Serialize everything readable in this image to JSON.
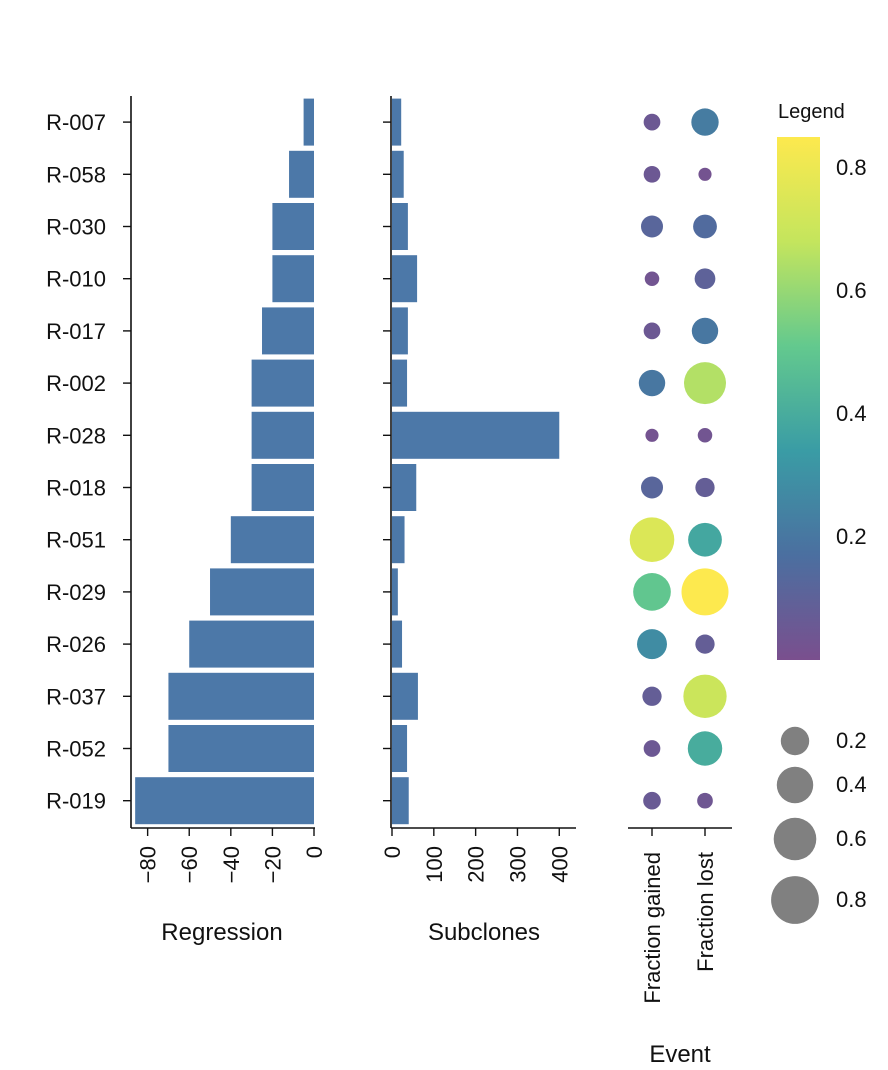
{
  "chart_data": {
    "type": "bar",
    "samples": [
      "R-007",
      "R-058",
      "R-030",
      "R-010",
      "R-017",
      "R-002",
      "R-028",
      "R-018",
      "R-051",
      "R-029",
      "R-026",
      "R-037",
      "R-052",
      "R-019"
    ],
    "bar_color": "#4c78a8",
    "panels": {
      "regression": {
        "title": "Regression",
        "type": "bar",
        "orientation": "horizontal",
        "values": [
          -5,
          -12,
          -20,
          -20,
          -25,
          -30,
          -30,
          -30,
          -40,
          -50,
          -60,
          -70,
          -70,
          -86
        ],
        "xlim": [
          -88,
          0
        ],
        "ticks": [
          -80,
          -60,
          -40,
          -20,
          0
        ],
        "tick_labels": [
          "−80",
          "−60",
          "−40",
          "−20",
          "0"
        ]
      },
      "subclones": {
        "title": "Subclones",
        "type": "bar",
        "orientation": "horizontal",
        "values": [
          22,
          28,
          38,
          60,
          38,
          36,
          400,
          58,
          30,
          14,
          24,
          62,
          36,
          40
        ],
        "xlim": [
          0,
          440
        ],
        "ticks": [
          0,
          100,
          200,
          300,
          400
        ],
        "tick_labels": [
          "0",
          "100",
          "200",
          "300",
          "400"
        ]
      },
      "events": {
        "title": "Event",
        "type": "scatter",
        "categories": [
          "Fraction gained",
          "Fraction lost"
        ],
        "gained": [
          0.05,
          0.05,
          0.12,
          0.03,
          0.05,
          0.2,
          0.02,
          0.12,
          0.75,
          0.5,
          0.28,
          0.08,
          0.05,
          0.06
        ],
        "lost": [
          0.22,
          0.02,
          0.15,
          0.1,
          0.2,
          0.65,
          0.03,
          0.08,
          0.38,
          0.85,
          0.08,
          0.7,
          0.4,
          0.04
        ]
      }
    },
    "legend": {
      "title": "Legend",
      "colorbar_range": [
        0.0,
        0.85
      ],
      "colorbar_ticks": [
        0.2,
        0.4,
        0.6,
        0.8
      ],
      "colorbar_tick_labels": [
        "0.2",
        "0.4",
        "0.6",
        "0.8"
      ],
      "size_values": [
        0.2,
        0.4,
        0.6,
        0.8
      ],
      "size_labels": [
        "0.2",
        "0.4",
        "0.6",
        "0.8"
      ],
      "size_color": "#808080",
      "colormap": [
        "#7a4f8e",
        "#4b6fa0",
        "#3a9ca5",
        "#63c98e",
        "#c4e55d",
        "#fde94e"
      ]
    }
  }
}
